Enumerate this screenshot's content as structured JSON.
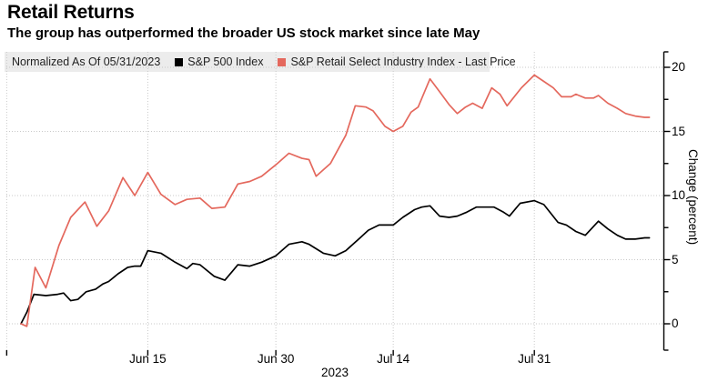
{
  "header": {
    "title": "Retail Returns",
    "subtitle": "The group has outperformed the broader US stock market since late May"
  },
  "legend": {
    "note": "Normalized As Of 05/31/2023",
    "series": [
      {
        "label": "S&P 500 Index",
        "color": "#000000"
      },
      {
        "label": "S&P Retail Select Industry Index - Last Price",
        "color": "#e4685d"
      }
    ]
  },
  "chart_data": {
    "type": "line",
    "title": "Retail Returns",
    "subtitle": "The group has outperformed the broader US stock market since late May",
    "normalized_as_of": "05/31/2023",
    "grid": "dotted",
    "x_axis": {
      "unit": "trading days since 2023-05-31 (0 = May 31 2023)",
      "domain": [
        0,
        53
      ],
      "ticks": [
        {
          "d": 10.7,
          "label": "Jun 15"
        },
        {
          "d": 21.5,
          "label": "Jun 30"
        },
        {
          "d": 31.4,
          "label": "Jul 14"
        },
        {
          "d": 43.3,
          "label": "Jul 31"
        }
      ],
      "minor_gridline_days": [
        -1.2
      ],
      "year_label": "2023"
    },
    "y_axis": {
      "label": "Change (percent)",
      "side": "right",
      "range": [
        -2.2,
        21.2
      ],
      "ticks": [
        {
          "v": 0,
          "label": "0"
        },
        {
          "v": 5,
          "label": "5"
        },
        {
          "v": 10,
          "label": "10"
        },
        {
          "v": 15,
          "label": "15"
        },
        {
          "v": 20,
          "label": "20"
        }
      ],
      "minor_ticks": [
        2.5,
        7.5,
        12.5,
        17.5
      ]
    },
    "series": [
      {
        "name": "S&P 500 Index",
        "color": "#000000",
        "points": [
          [
            0,
            0
          ],
          [
            0.5,
            0.9
          ],
          [
            1.1,
            2.3
          ],
          [
            2.1,
            2.2
          ],
          [
            3.1,
            2.3
          ],
          [
            3.6,
            2.4
          ],
          [
            4.2,
            1.8
          ],
          [
            4.8,
            1.9
          ],
          [
            5.5,
            2.5
          ],
          [
            6.3,
            2.7
          ],
          [
            6.9,
            3.1
          ],
          [
            7.4,
            3.3
          ],
          [
            8.2,
            3.9
          ],
          [
            9,
            4.4
          ],
          [
            9.6,
            4.5
          ],
          [
            10.1,
            4.5
          ],
          [
            10.7,
            5.7
          ],
          [
            11.8,
            5.5
          ],
          [
            13,
            4.8
          ],
          [
            14,
            4.3
          ],
          [
            14.5,
            4.7
          ],
          [
            15.1,
            4.6
          ],
          [
            16.3,
            3.7
          ],
          [
            17.2,
            3.4
          ],
          [
            18.3,
            4.6
          ],
          [
            19.3,
            4.5
          ],
          [
            20.3,
            4.8
          ],
          [
            21.5,
            5.3
          ],
          [
            22.6,
            6.2
          ],
          [
            23.7,
            6.4
          ],
          [
            24.3,
            6.2
          ],
          [
            25.5,
            5.5
          ],
          [
            26.5,
            5.3
          ],
          [
            27.4,
            5.7
          ],
          [
            28.6,
            6.7
          ],
          [
            29.3,
            7.3
          ],
          [
            30.2,
            7.7
          ],
          [
            31.4,
            7.7
          ],
          [
            32.2,
            8.3
          ],
          [
            33.2,
            8.9
          ],
          [
            33.8,
            9.1
          ],
          [
            34.5,
            9.2
          ],
          [
            35.3,
            8.4
          ],
          [
            36.1,
            8.3
          ],
          [
            36.8,
            8.4
          ],
          [
            37.6,
            8.7
          ],
          [
            38.4,
            9.1
          ],
          [
            39.1,
            9.1
          ],
          [
            39.9,
            9.1
          ],
          [
            40.7,
            8.7
          ],
          [
            41.2,
            8.4
          ],
          [
            42.1,
            9.4
          ],
          [
            43.3,
            9.6
          ],
          [
            44.1,
            9.3
          ],
          [
            45.3,
            7.9
          ],
          [
            46,
            7.7
          ],
          [
            46.8,
            7.2
          ],
          [
            47.6,
            6.9
          ],
          [
            48.7,
            8
          ],
          [
            49.5,
            7.4
          ],
          [
            50.3,
            6.9
          ],
          [
            51,
            6.6
          ],
          [
            51.8,
            6.6
          ],
          [
            52.6,
            6.7
          ],
          [
            53,
            6.7
          ]
        ]
      },
      {
        "name": "S&P Retail Select Industry Index - Last Price",
        "color": "#e4685d",
        "points": [
          [
            0,
            0
          ],
          [
            0.5,
            -0.2
          ],
          [
            1.2,
            4.4
          ],
          [
            2.1,
            2.8
          ],
          [
            3.2,
            6.1
          ],
          [
            4.2,
            8.3
          ],
          [
            5.4,
            9.5
          ],
          [
            6.4,
            7.6
          ],
          [
            7.4,
            8.8
          ],
          [
            8.6,
            11.4
          ],
          [
            9.6,
            10
          ],
          [
            10.7,
            11.8
          ],
          [
            11.8,
            10.1
          ],
          [
            13,
            9.3
          ],
          [
            14,
            9.7
          ],
          [
            15.1,
            9.8
          ],
          [
            16.1,
            9
          ],
          [
            17.2,
            9.1
          ],
          [
            18.3,
            10.9
          ],
          [
            19.3,
            11.1
          ],
          [
            20.3,
            11.5
          ],
          [
            21.5,
            12.4
          ],
          [
            22.6,
            13.3
          ],
          [
            23.7,
            12.9
          ],
          [
            24.3,
            12.8
          ],
          [
            24.9,
            11.5
          ],
          [
            26.1,
            12.5
          ],
          [
            27.4,
            14.7
          ],
          [
            28.2,
            17
          ],
          [
            29.1,
            16.9
          ],
          [
            29.7,
            16.6
          ],
          [
            30.7,
            15.4
          ],
          [
            31.4,
            15
          ],
          [
            32.2,
            15.4
          ],
          [
            32.9,
            16.5
          ],
          [
            33.5,
            16.9
          ],
          [
            34.5,
            19.1
          ],
          [
            35.3,
            18.1
          ],
          [
            36.1,
            17.1
          ],
          [
            36.8,
            16.4
          ],
          [
            37.5,
            16.9
          ],
          [
            38.1,
            17.2
          ],
          [
            38.9,
            16.8
          ],
          [
            39.7,
            18.4
          ],
          [
            40.4,
            17.9
          ],
          [
            41,
            17
          ],
          [
            42.2,
            18.4
          ],
          [
            43.3,
            19.4
          ],
          [
            44.1,
            18.9
          ],
          [
            44.9,
            18.4
          ],
          [
            45.6,
            17.7
          ],
          [
            46.4,
            17.7
          ],
          [
            46.8,
            17.9
          ],
          [
            47.6,
            17.6
          ],
          [
            48.3,
            17.6
          ],
          [
            48.7,
            17.8
          ],
          [
            49.5,
            17.2
          ],
          [
            50.3,
            16.8
          ],
          [
            51,
            16.4
          ],
          [
            51.8,
            16.2
          ],
          [
            52.6,
            16.1
          ],
          [
            53,
            16.1
          ]
        ]
      }
    ]
  }
}
